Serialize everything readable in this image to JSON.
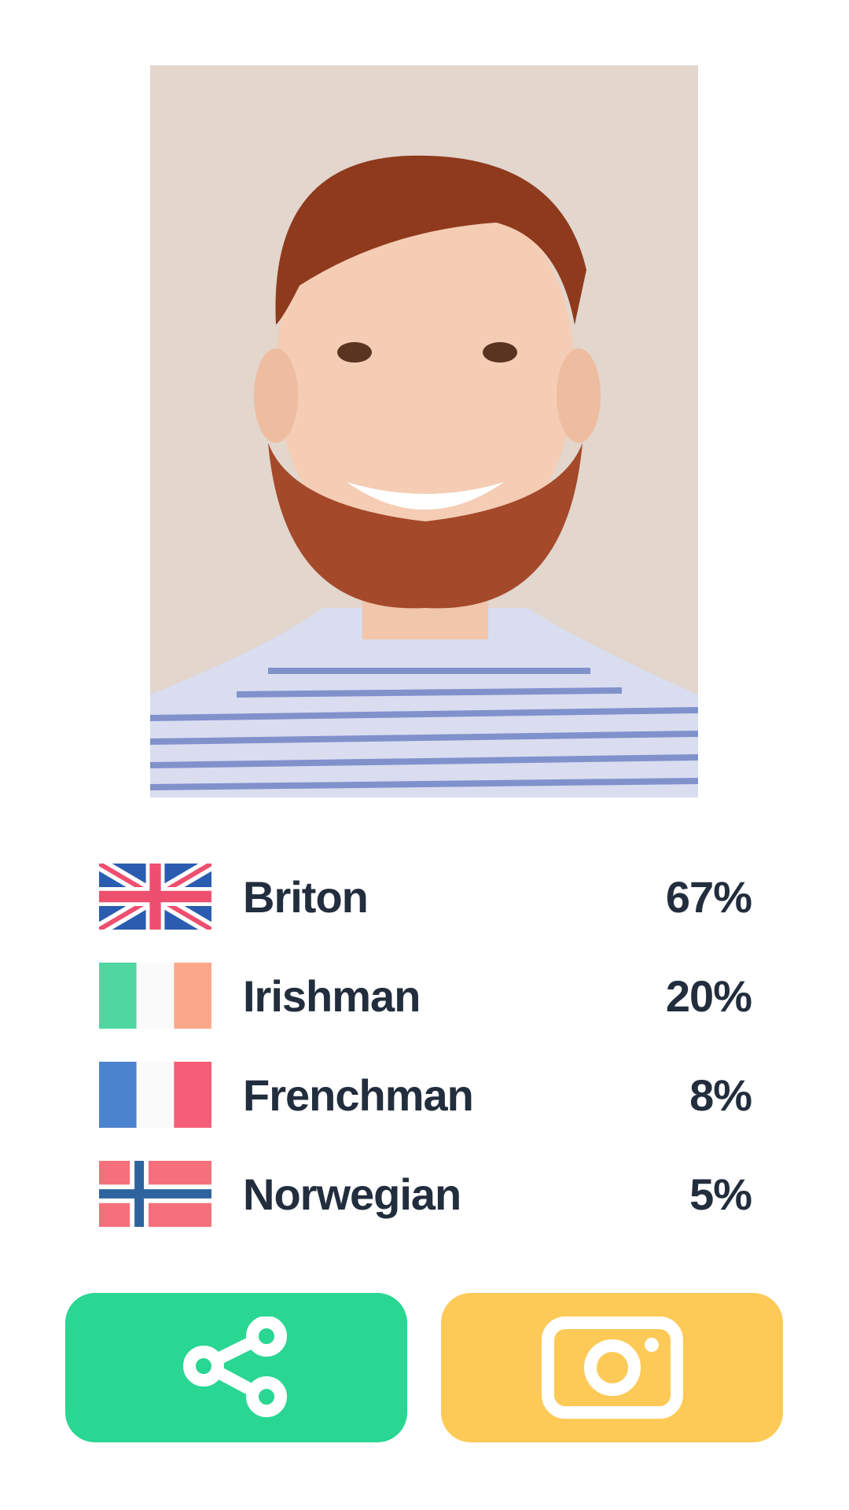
{
  "photo": {
    "alt": "portrait"
  },
  "results": [
    {
      "flag": "uk-flag",
      "label": "Briton",
      "percent": "67%"
    },
    {
      "flag": "ireland-flag",
      "label": "Irishman",
      "percent": "20%"
    },
    {
      "flag": "france-flag",
      "label": "Frenchman",
      "percent": "8%"
    },
    {
      "flag": "norway-flag",
      "label": "Norwegian",
      "percent": "5%"
    }
  ],
  "buttons": {
    "share": {
      "icon": "share-icon",
      "color": "#29d692"
    },
    "camera": {
      "icon": "camera-icon",
      "color": "#fdca57"
    }
  },
  "colors": {
    "text": "#222d3d"
  }
}
